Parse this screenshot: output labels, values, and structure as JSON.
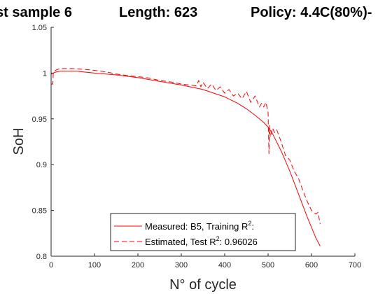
{
  "chart_data": {
    "type": "line",
    "title_parts": [
      "st sample 6",
      "Length: 623",
      "Policy: 4.4C(80%)-"
    ],
    "xlabel": "N° of cycle",
    "ylabel": "SoH",
    "xlim": [
      0,
      700
    ],
    "ylim": [
      0.8,
      1.05
    ],
    "xticks": [
      "0",
      "100",
      "200",
      "300",
      "400",
      "500",
      "600",
      "700"
    ],
    "yticks": [
      "0.8",
      "0.85",
      "0.9",
      "0.95",
      "1",
      "1.05"
    ],
    "grid": false,
    "legend_position": "bottom-center",
    "series": [
      {
        "name": "Measured: B5,  Training R",
        "name_sup": "2",
        "name_suffix": ":",
        "style": "solid",
        "color": "#ff0000",
        "x": [
          0,
          10,
          20,
          40,
          60,
          80,
          100,
          150,
          200,
          250,
          300,
          350,
          400,
          430,
          450,
          470,
          490,
          500,
          510,
          530,
          550,
          570,
          590,
          610,
          620
        ],
        "y": [
          0.999,
          1.001,
          1.002,
          1.002,
          1.002,
          1.001,
          1.0,
          0.998,
          0.995,
          0.991,
          0.987,
          0.982,
          0.974,
          0.967,
          0.961,
          0.954,
          0.946,
          0.941,
          0.934,
          0.915,
          0.893,
          0.868,
          0.843,
          0.82,
          0.811
        ]
      },
      {
        "name": "Estimated,  Test R",
        "name_sup": "2",
        "name_suffix": ": 0.96026",
        "style": "dashed",
        "color": "#ff0000",
        "x": [
          0,
          4,
          5,
          10,
          15,
          20,
          30,
          50,
          80,
          100,
          130,
          150,
          180,
          200,
          220,
          250,
          280,
          300,
          320,
          335,
          340,
          345,
          350,
          360,
          370,
          380,
          390,
          400,
          410,
          420,
          430,
          440,
          450,
          460,
          470,
          480,
          485,
          490,
          495,
          500,
          502,
          503,
          505,
          510,
          515,
          520,
          530,
          540,
          550,
          560,
          570,
          580,
          590,
          600,
          610,
          615,
          620
        ],
        "y": [
          0.988,
          0.988,
          1.0,
          1.003,
          1.004,
          1.005,
          1.005,
          1.005,
          1.004,
          1.003,
          1.001,
          0.999,
          0.997,
          0.996,
          0.995,
          0.992,
          0.99,
          0.988,
          0.987,
          0.986,
          0.992,
          0.985,
          0.99,
          0.983,
          0.988,
          0.981,
          0.985,
          0.978,
          0.982,
          0.975,
          0.978,
          0.972,
          0.98,
          0.968,
          0.975,
          0.963,
          0.967,
          0.963,
          0.968,
          0.957,
          0.912,
          0.943,
          0.93,
          0.94,
          0.935,
          0.938,
          0.925,
          0.91,
          0.905,
          0.893,
          0.885,
          0.872,
          0.86,
          0.85,
          0.846,
          0.848,
          0.835
        ]
      }
    ]
  }
}
